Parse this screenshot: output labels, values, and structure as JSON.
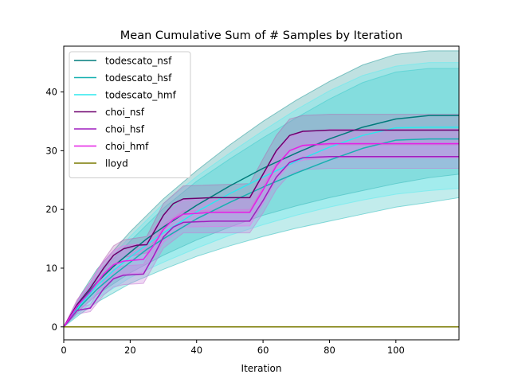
{
  "chart_data": {
    "type": "line",
    "title": "Mean Cumulative Sum of # Samples by Iteration",
    "xlabel": "Iteration",
    "ylabel": "",
    "xlim": [
      0,
      119
    ],
    "ylim": [
      -2.2,
      47.8
    ],
    "xticks": [
      0,
      20,
      40,
      60,
      80,
      100
    ],
    "yticks": [
      0,
      10,
      20,
      30,
      40
    ],
    "grid": false,
    "legend_position": "top-left",
    "series": [
      {
        "name": "todescato_nsf",
        "color": "#007b7b",
        "band_color": "#2a9d9d",
        "mean": [
          [
            0,
            0
          ],
          [
            5,
            4.2
          ],
          [
            10,
            7.6
          ],
          [
            15,
            10.3
          ],
          [
            20,
            12.7
          ],
          [
            25,
            15
          ],
          [
            30,
            17
          ],
          [
            40,
            20.7
          ],
          [
            50,
            24
          ],
          [
            60,
            27
          ],
          [
            70,
            29.6
          ],
          [
            80,
            32
          ],
          [
            90,
            34
          ],
          [
            100,
            35.4
          ],
          [
            110,
            36
          ],
          [
            119,
            36
          ]
        ],
        "band": [
          [
            0,
            0,
            0
          ],
          [
            5,
            3,
            5.4
          ],
          [
            10,
            5.5,
            9.8
          ],
          [
            20,
            9.2,
            16.2
          ],
          [
            30,
            12.2,
            21.8
          ],
          [
            40,
            14.8,
            26.6
          ],
          [
            50,
            17,
            31
          ],
          [
            60,
            19,
            35
          ],
          [
            70,
            20.6,
            38.6
          ],
          [
            80,
            22,
            41.8
          ],
          [
            90,
            23.2,
            44.6
          ],
          [
            100,
            24.4,
            46.4
          ],
          [
            110,
            25.4,
            47
          ],
          [
            119,
            26,
            47
          ]
        ]
      },
      {
        "name": "todescato_hsf",
        "color": "#17b0b0",
        "band_color": "#35c0c0",
        "mean": [
          [
            0,
            0
          ],
          [
            5,
            3.5
          ],
          [
            10,
            6.4
          ],
          [
            15,
            8.8
          ],
          [
            20,
            11
          ],
          [
            25,
            13.2
          ],
          [
            30,
            15
          ],
          [
            40,
            18.4
          ],
          [
            50,
            21.2
          ],
          [
            60,
            23.8
          ],
          [
            70,
            26.2
          ],
          [
            80,
            28.4
          ],
          [
            90,
            30.4
          ],
          [
            100,
            31.8
          ],
          [
            110,
            32
          ],
          [
            119,
            32
          ]
        ],
        "band": [
          [
            0,
            0,
            0
          ],
          [
            5,
            2.2,
            4.8
          ],
          [
            10,
            4.2,
            8.6
          ],
          [
            20,
            7.4,
            14.6
          ],
          [
            30,
            9.8,
            20.2
          ],
          [
            40,
            12,
            24.8
          ],
          [
            50,
            13.8,
            28.6
          ],
          [
            60,
            15.4,
            32.2
          ],
          [
            70,
            16.8,
            35.6
          ],
          [
            80,
            18,
            38.8
          ],
          [
            90,
            19.2,
            41.6
          ],
          [
            100,
            20.4,
            43.4
          ],
          [
            110,
            21.2,
            44
          ],
          [
            119,
            22,
            44
          ]
        ]
      },
      {
        "name": "todescato_hmf",
        "color": "#2de8ee",
        "band_color": "#5eecf0",
        "mean": [
          [
            0,
            0
          ],
          [
            5,
            3.8
          ],
          [
            10,
            7
          ],
          [
            15,
            9.6
          ],
          [
            20,
            11.9
          ],
          [
            25,
            14
          ],
          [
            30,
            16
          ],
          [
            40,
            19.6
          ],
          [
            50,
            22.7
          ],
          [
            60,
            25.5
          ],
          [
            70,
            28.2
          ],
          [
            80,
            30.6
          ],
          [
            90,
            32.6
          ],
          [
            100,
            33.9
          ],
          [
            110,
            34
          ],
          [
            119,
            34
          ]
        ],
        "band": [
          [
            0,
            0,
            0
          ],
          [
            5,
            2.6,
            5
          ],
          [
            10,
            4.8,
            9.2
          ],
          [
            20,
            8.4,
            15.4
          ],
          [
            30,
            11,
            21
          ],
          [
            40,
            13.4,
            25.6
          ],
          [
            50,
            15.6,
            29.6
          ],
          [
            60,
            17.4,
            33.4
          ],
          [
            70,
            19,
            37
          ],
          [
            80,
            20.4,
            40.2
          ],
          [
            90,
            21.6,
            42.8
          ],
          [
            100,
            22.6,
            44.4
          ],
          [
            110,
            23.2,
            45
          ],
          [
            119,
            23.6,
            45
          ]
        ]
      },
      {
        "name": "choi_nsf",
        "color": "#6d006d",
        "band_color": "#b36cb3",
        "mean": [
          [
            0,
            0
          ],
          [
            4,
            3.8
          ],
          [
            8,
            6.6
          ],
          [
            12,
            10
          ],
          [
            15,
            12.2
          ],
          [
            18,
            13.3
          ],
          [
            22,
            13.9
          ],
          [
            25,
            14
          ],
          [
            27,
            16
          ],
          [
            30,
            19
          ],
          [
            33,
            21
          ],
          [
            36,
            21.8
          ],
          [
            45,
            22
          ],
          [
            56,
            22
          ],
          [
            60,
            26
          ],
          [
            64,
            30
          ],
          [
            68,
            32.6
          ],
          [
            72,
            33.3
          ],
          [
            80,
            33.5
          ],
          [
            119,
            33.5
          ]
        ],
        "band": [
          [
            0,
            0,
            0
          ],
          [
            4,
            3,
            4.6
          ],
          [
            8,
            5.6,
            7.6
          ],
          [
            12,
            8.6,
            11.4
          ],
          [
            15,
            10.6,
            13.8
          ],
          [
            18,
            11.8,
            14.8
          ],
          [
            25,
            12.6,
            15.4
          ],
          [
            30,
            17,
            21
          ],
          [
            36,
            19.6,
            24
          ],
          [
            56,
            19.6,
            24.4
          ],
          [
            60,
            23.8,
            28.6
          ],
          [
            64,
            27.6,
            32.6
          ],
          [
            68,
            30,
            35.4
          ],
          [
            72,
            30.8,
            36
          ],
          [
            80,
            31,
            36.2
          ],
          [
            119,
            31,
            36.2
          ]
        ]
      },
      {
        "name": "choi_hsf",
        "color": "#9f1fbf",
        "band_color": "#c77bd6",
        "mean": [
          [
            0,
            0
          ],
          [
            4,
            2.8
          ],
          [
            7,
            3.1
          ],
          [
            8,
            3.2
          ],
          [
            12,
            6.5
          ],
          [
            15,
            8.2
          ],
          [
            18,
            8.8
          ],
          [
            24,
            9
          ],
          [
            27,
            12
          ],
          [
            30,
            15.3
          ],
          [
            33,
            17
          ],
          [
            36,
            17.8
          ],
          [
            45,
            18
          ],
          [
            56,
            18
          ],
          [
            60,
            21.5
          ],
          [
            64,
            25.5
          ],
          [
            68,
            28
          ],
          [
            72,
            28.8
          ],
          [
            80,
            29
          ],
          [
            119,
            29
          ]
        ],
        "band": [
          [
            0,
            0,
            0
          ],
          [
            4,
            2.2,
            3.4
          ],
          [
            8,
            2.6,
            3.8
          ],
          [
            12,
            5.4,
            7.8
          ],
          [
            15,
            6.8,
            9.8
          ],
          [
            18,
            7.2,
            10.4
          ],
          [
            24,
            7.4,
            10.6
          ],
          [
            30,
            13.4,
            17.4
          ],
          [
            36,
            16,
            19.8
          ],
          [
            56,
            16,
            20
          ],
          [
            60,
            19.4,
            23.8
          ],
          [
            64,
            23.4,
            27.8
          ],
          [
            68,
            26,
            30
          ],
          [
            72,
            26.8,
            31
          ],
          [
            80,
            27,
            31.2
          ],
          [
            119,
            27,
            31.2
          ]
        ]
      },
      {
        "name": "choi_hmf",
        "color": "#e51fe5",
        "band_color": "#ee6eee",
        "mean": [
          [
            0,
            0
          ],
          [
            4,
            3.5
          ],
          [
            8,
            6
          ],
          [
            12,
            9
          ],
          [
            15,
            10.6
          ],
          [
            18,
            11.2
          ],
          [
            24,
            11.5
          ],
          [
            27,
            13.8
          ],
          [
            30,
            16.6
          ],
          [
            33,
            18.3
          ],
          [
            36,
            19.2
          ],
          [
            45,
            19.5
          ],
          [
            56,
            19.5
          ],
          [
            60,
            23.3
          ],
          [
            64,
            27.4
          ],
          [
            68,
            30
          ],
          [
            72,
            30.9
          ],
          [
            80,
            31.2
          ],
          [
            119,
            31.2
          ]
        ],
        "band": [
          [
            0,
            0,
            0
          ],
          [
            4,
            2.6,
            4.4
          ],
          [
            8,
            4.4,
            7.6
          ],
          [
            12,
            7,
            11.2
          ],
          [
            15,
            8.4,
            13
          ],
          [
            18,
            9,
            13.8
          ],
          [
            24,
            9.2,
            14.2
          ],
          [
            30,
            14.4,
            19
          ],
          [
            36,
            17,
            21.6
          ],
          [
            56,
            17.2,
            21.8
          ],
          [
            60,
            21,
            25.6
          ],
          [
            64,
            25,
            29.8
          ],
          [
            68,
            27.6,
            32.4
          ],
          [
            72,
            28.4,
            33.2
          ],
          [
            80,
            28.8,
            33.6
          ],
          [
            119,
            28.8,
            33.6
          ]
        ]
      },
      {
        "name": "lloyd",
        "color": "#7a7a00",
        "band_color": "",
        "mean": [
          [
            0,
            0
          ],
          [
            119,
            0
          ]
        ],
        "band": []
      }
    ]
  }
}
